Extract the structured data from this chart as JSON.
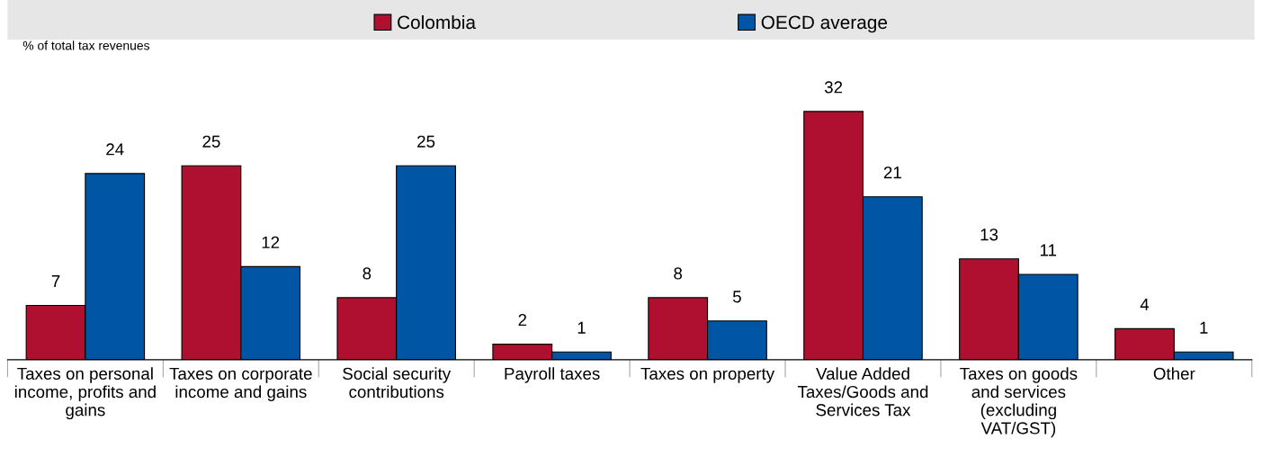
{
  "chart_data": {
    "type": "bar",
    "ylabel": "% of total tax revenues",
    "categories": [
      "Taxes on personal\nincome, profits and\ngains",
      "Taxes on corporate\nincome and gains",
      "Social security\ncontributions",
      "Payroll taxes",
      "Taxes on property",
      "Value Added\nTaxes/Goods and\nServices Tax",
      "Taxes on goods\nand services\n(excluding\nVAT/GST)",
      "Other"
    ],
    "series": [
      {
        "name": "Colombia",
        "color": "#b0102f",
        "values": [
          7,
          25,
          8,
          2,
          8,
          32,
          13,
          4
        ]
      },
      {
        "name": "OECD average",
        "color": "#0055a4",
        "values": [
          24,
          12,
          25,
          1,
          5,
          21,
          11,
          1
        ]
      }
    ],
    "data_labels": true,
    "legend": "top",
    "grid": false
  }
}
